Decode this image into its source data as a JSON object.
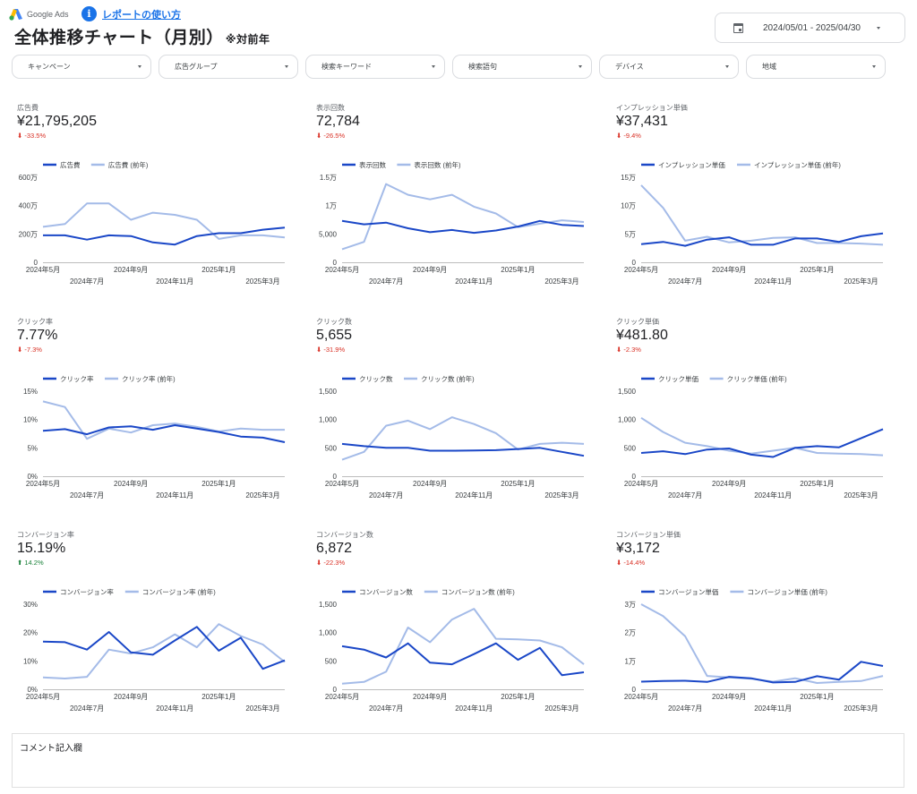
{
  "header": {
    "logo_text": "Google Ads",
    "help_link": "レポートの使い方",
    "title": "全体推移チャート（月別）",
    "title_note": "※対前年",
    "date_range": "2024/05/01 - 2025/04/30"
  },
  "filters": [
    {
      "label": "キャンペーン"
    },
    {
      "label": "広告グループ"
    },
    {
      "label": "検索キーワード"
    },
    {
      "label": "検索語句"
    },
    {
      "label": "デバイス"
    },
    {
      "label": "地域"
    }
  ],
  "colors": {
    "current": "#1a47c7",
    "previous": "#a4bbe8",
    "down": "#d93025",
    "up": "#188038",
    "accent": "#1a73e8"
  },
  "kpis": [
    {
      "label": "広告費",
      "value": "¥21,795,205",
      "delta": "-33.5%",
      "dir": "down"
    },
    {
      "label": "表示回数",
      "value": "72,784",
      "delta": "-26.5%",
      "dir": "down"
    },
    {
      "label": "インプレッション単価",
      "value": "¥37,431",
      "delta": "-9.4%",
      "dir": "down"
    },
    {
      "label": "クリック率",
      "value": "7.77%",
      "delta": "-7.3%",
      "dir": "down"
    },
    {
      "label": "クリック数",
      "value": "5,655",
      "delta": "-31.9%",
      "dir": "down"
    },
    {
      "label": "クリック単価",
      "value": "¥481.80",
      "delta": "-2.3%",
      "dir": "down"
    },
    {
      "label": "コンバージョン率",
      "value": "15.19%",
      "delta": "14.2%",
      "dir": "up"
    },
    {
      "label": "コンバージョン数",
      "value": "6,872",
      "delta": "-22.3%",
      "dir": "down"
    },
    {
      "label": "コンバージョン単価",
      "value": "¥3,172",
      "delta": "-14.4%",
      "dir": "down"
    }
  ],
  "comment": {
    "label": "コメント記入欄"
  },
  "chart_data": [
    {
      "type": "line",
      "title": "広告費",
      "categories": [
        "2024年5月",
        "2024年6月",
        "2024年7月",
        "2024年8月",
        "2024年9月",
        "2024年10月",
        "2024年11月",
        "2024年12月",
        "2025年1月",
        "2025年2月",
        "2025年3月",
        "2025年4月"
      ],
      "x_tick_labels": [
        "2024年5月",
        "2024年7月",
        "2024年9月",
        "2024年11月",
        "2025年1月",
        "2025年3月"
      ],
      "yticks": [
        "0",
        "200万",
        "400万",
        "600万"
      ],
      "ylim": [
        0,
        6000000
      ],
      "series": [
        {
          "name": "広告費",
          "values": [
            1900000,
            1900000,
            1600000,
            1900000,
            1850000,
            1400000,
            1250000,
            1850000,
            2050000,
            2050000,
            2300000,
            2450000
          ]
        },
        {
          "name": "広告費 (前年)",
          "values": [
            2500000,
            2700000,
            4150000,
            4150000,
            3000000,
            3500000,
            3350000,
            3000000,
            1650000,
            1900000,
            1900000,
            1750000
          ]
        }
      ],
      "legend_position": "top",
      "grid": false
    },
    {
      "type": "line",
      "title": "表示回数",
      "categories": [
        "2024年5月",
        "2024年6月",
        "2024年7月",
        "2024年8月",
        "2024年9月",
        "2024年10月",
        "2024年11月",
        "2024年12月",
        "2025年1月",
        "2025年2月",
        "2025年3月",
        "2025年4月"
      ],
      "x_tick_labels": [
        "2024年5月",
        "2024年7月",
        "2024年9月",
        "2024年11月",
        "2025年1月",
        "2025年3月"
      ],
      "yticks": [
        "0",
        "5,000",
        "1万",
        "1.5万"
      ],
      "ylim": [
        0,
        15000
      ],
      "series": [
        {
          "name": "表示回数",
          "values": [
            7300,
            6700,
            7000,
            6000,
            5300,
            5700,
            5200,
            5600,
            6300,
            7300,
            6600,
            6400
          ]
        },
        {
          "name": "表示回数 (前年)",
          "values": [
            2300,
            3600,
            13800,
            11900,
            11100,
            11900,
            9800,
            8600,
            6200,
            6800,
            7400,
            7100
          ]
        }
      ],
      "legend_position": "top",
      "grid": false
    },
    {
      "type": "line",
      "title": "インプレッション単価",
      "categories": [
        "2024年5月",
        "2024年6月",
        "2024年7月",
        "2024年8月",
        "2024年9月",
        "2024年10月",
        "2024年11月",
        "2024年12月",
        "2025年1月",
        "2025年2月",
        "2025年3月",
        "2025年4月"
      ],
      "x_tick_labels": [
        "2024年5月",
        "2024年7月",
        "2024年9月",
        "2024年11月",
        "2025年1月",
        "2025年3月"
      ],
      "yticks": [
        "0",
        "5万",
        "10万",
        "15万"
      ],
      "ylim": [
        0,
        150000
      ],
      "series": [
        {
          "name": "インプレッション単価",
          "values": [
            32000,
            36000,
            29000,
            40000,
            44000,
            31000,
            31000,
            42000,
            42000,
            36000,
            46000,
            51000
          ]
        },
        {
          "name": "インプレッション単価 (前年)",
          "values": [
            136000,
            96000,
            38000,
            45000,
            35000,
            38000,
            43000,
            44000,
            34000,
            34000,
            33000,
            31000
          ]
        }
      ],
      "legend_position": "top",
      "grid": false
    },
    {
      "type": "line",
      "title": "クリック率",
      "categories": [
        "2024年5月",
        "2024年6月",
        "2024年7月",
        "2024年8月",
        "2024年9月",
        "2024年10月",
        "2024年11月",
        "2024年12月",
        "2025年1月",
        "2025年2月",
        "2025年3月",
        "2025年4月"
      ],
      "x_tick_labels": [
        "2024年5月",
        "2024年7月",
        "2024年9月",
        "2024年11月",
        "2025年1月",
        "2025年3月"
      ],
      "yticks": [
        "0%",
        "5%",
        "10%",
        "15%"
      ],
      "ylim": [
        0,
        15
      ],
      "series": [
        {
          "name": "クリック率",
          "values": [
            8.0,
            8.3,
            7.4,
            8.6,
            8.8,
            8.2,
            9.0,
            8.4,
            7.8,
            7.0,
            6.8,
            6.0
          ]
        },
        {
          "name": "クリック率 (前年)",
          "values": [
            13.2,
            12.2,
            6.6,
            8.4,
            7.7,
            9.0,
            9.3,
            8.7,
            7.9,
            8.4,
            8.2,
            8.2
          ]
        }
      ],
      "legend_position": "top",
      "grid": false
    },
    {
      "type": "line",
      "title": "クリック数",
      "categories": [
        "2024年5月",
        "2024年6月",
        "2024年7月",
        "2024年8月",
        "2024年9月",
        "2024年10月",
        "2024年11月",
        "2024年12月",
        "2025年1月",
        "2025年2月",
        "2025年3月",
        "2025年4月"
      ],
      "x_tick_labels": [
        "2024年5月",
        "2024年7月",
        "2024年9月",
        "2024年11月",
        "2025年1月",
        "2025年3月"
      ],
      "yticks": [
        "0",
        "500",
        "1,000",
        "1,500"
      ],
      "ylim": [
        0,
        1500
      ],
      "series": [
        {
          "name": "クリック数",
          "values": [
            570,
            530,
            500,
            500,
            450,
            450,
            455,
            460,
            480,
            500,
            430,
            360
          ]
        },
        {
          "name": "クリック数 (前年)",
          "values": [
            290,
            430,
            890,
            980,
            830,
            1040,
            920,
            760,
            470,
            570,
            590,
            570
          ]
        }
      ],
      "legend_position": "top",
      "grid": false
    },
    {
      "type": "line",
      "title": "クリック単価",
      "categories": [
        "2024年5月",
        "2024年6月",
        "2024年7月",
        "2024年8月",
        "2024年9月",
        "2024年10月",
        "2024年11月",
        "2024年12月",
        "2025年1月",
        "2025年2月",
        "2025年3月",
        "2025年4月"
      ],
      "x_tick_labels": [
        "2024年5月",
        "2024年7月",
        "2024年9月",
        "2024年11月",
        "2025年1月",
        "2025年3月"
      ],
      "yticks": [
        "0",
        "500",
        "1,000",
        "1,500"
      ],
      "ylim": [
        0,
        1500
      ],
      "series": [
        {
          "name": "クリック単価",
          "values": [
            410,
            440,
            390,
            470,
            490,
            380,
            340,
            500,
            530,
            510,
            670,
            830
          ]
        },
        {
          "name": "クリック単価 (前年)",
          "values": [
            1030,
            780,
            590,
            530,
            450,
            400,
            450,
            500,
            410,
            400,
            390,
            370
          ]
        }
      ],
      "legend_position": "top",
      "grid": false
    },
    {
      "type": "line",
      "title": "コンバージョン率",
      "categories": [
        "2024年5月",
        "2024年6月",
        "2024年7月",
        "2024年8月",
        "2024年9月",
        "2024年10月",
        "2024年11月",
        "2024年12月",
        "2025年1月",
        "2025年2月",
        "2025年3月",
        "2025年4月"
      ],
      "x_tick_labels": [
        "2024年5月",
        "2024年7月",
        "2024年9月",
        "2024年11月",
        "2025年1月",
        "2025年3月"
      ],
      "yticks": [
        "0%",
        "10%",
        "20%",
        "30%"
      ],
      "ylim": [
        0,
        30
      ],
      "series": [
        {
          "name": "コンバージョン率",
          "values": [
            16.8,
            16.6,
            14.0,
            20.2,
            13.0,
            12.2,
            17.2,
            22.0,
            13.6,
            18.2,
            7.2,
            10.2
          ]
        },
        {
          "name": "コンバージョン率 (前年)",
          "values": [
            4.2,
            3.8,
            4.4,
            14.0,
            12.6,
            14.8,
            19.4,
            14.8,
            23.0,
            18.8,
            15.8,
            9.6
          ]
        }
      ],
      "legend_position": "top",
      "grid": false
    },
    {
      "type": "line",
      "title": "コンバージョン数",
      "categories": [
        "2024年5月",
        "2024年6月",
        "2024年7月",
        "2024年8月",
        "2024年9月",
        "2024年10月",
        "2024年11月",
        "2024年12月",
        "2025年1月",
        "2025年2月",
        "2025年3月",
        "2025年4月"
      ],
      "x_tick_labels": [
        "2024年5月",
        "2024年7月",
        "2024年9月",
        "2024年11月",
        "2025年1月",
        "2025年3月"
      ],
      "yticks": [
        "0",
        "500",
        "1,000",
        "1,500"
      ],
      "ylim": [
        0,
        1500
      ],
      "series": [
        {
          "name": "コンバージョン数",
          "values": [
            760,
            700,
            560,
            810,
            470,
            440,
            620,
            810,
            520,
            730,
            250,
            300
          ]
        },
        {
          "name": "コンバージョン数 (前年)",
          "values": [
            100,
            130,
            310,
            1090,
            830,
            1230,
            1420,
            890,
            880,
            860,
            740,
            440
          ]
        }
      ],
      "legend_position": "top",
      "grid": false
    },
    {
      "type": "line",
      "title": "コンバージョン単価",
      "categories": [
        "2024年5月",
        "2024年6月",
        "2024年7月",
        "2024年8月",
        "2024年9月",
        "2024年10月",
        "2024年11月",
        "2024年12月",
        "2025年1月",
        "2025年2月",
        "2025年3月",
        "2025年4月"
      ],
      "x_tick_labels": [
        "2024年5月",
        "2024年7月",
        "2024年9月",
        "2024年11月",
        "2025年1月",
        "2025年3月"
      ],
      "yticks": [
        "0",
        "1万",
        "2万",
        "3万"
      ],
      "ylim": [
        0,
        30000
      ],
      "series": [
        {
          "name": "コンバージョン単価",
          "values": [
            2700,
            2900,
            3000,
            2600,
            4400,
            3900,
            2400,
            2600,
            4600,
            3400,
            9700,
            8200
          ]
        },
        {
          "name": "コンバージョン単価 (前年)",
          "values": [
            30000,
            25800,
            18700,
            4700,
            4200,
            3700,
            2700,
            3900,
            2200,
            2600,
            2900,
            4700
          ]
        }
      ],
      "legend_position": "top",
      "grid": false
    }
  ]
}
